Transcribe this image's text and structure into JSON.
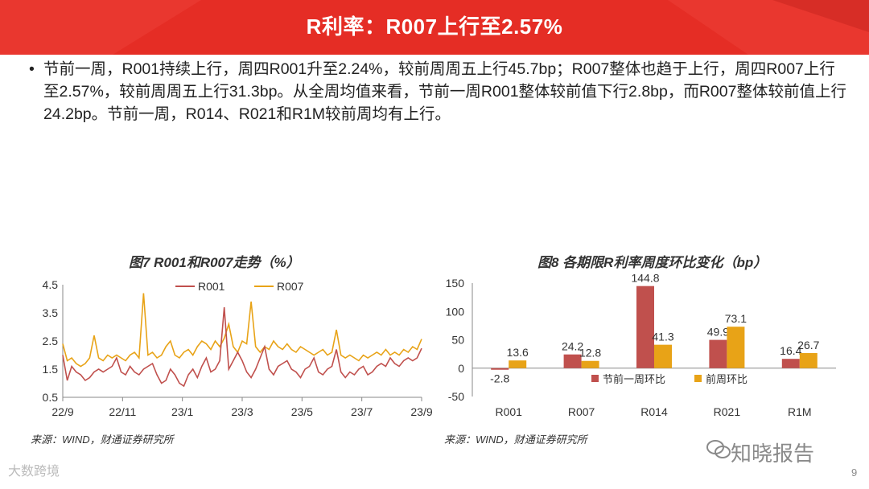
{
  "header": {
    "title": "R利率：R007上行至2.57%"
  },
  "bullet": {
    "text": "节前一周，R001持续上行，周四R001升至2.24%，较前周周五上行45.7bp；R007整体也趋于上行，周四R007上行至2.57%，较前周周五上行31.3bp。从全周均值来看，节前一周R001整体较前值下行2.8bp，而R007整体较前值上行24.2bp。节前一周，R014、R021和R1M较前周均有上行。"
  },
  "chart7": {
    "title": "图7 R001和R007走势（%）",
    "source": "来源：WIND，财通证券研究所"
  },
  "chart8": {
    "title": "图8 各期限R利率周度环比变化（bp）",
    "source": "来源：WIND，财通证券研究所"
  },
  "watermark": {
    "text": "知晓报告",
    "icon": "wechat-icon"
  },
  "footer": {
    "logo": "大数跨境",
    "page": "9"
  },
  "colors": {
    "banner": "#e52d25",
    "r001": "#c0504d",
    "r007": "#e8a317",
    "bar_prev_week": "#c0504d",
    "bar_week_before": "#e8a317"
  },
  "chart_data": [
    {
      "type": "line",
      "title": "图7 R001和R007走势（%）",
      "x_ticks": [
        "22/9",
        "22/11",
        "23/1",
        "23/3",
        "23/5",
        "23/7",
        "23/9"
      ],
      "ylim": [
        0.5,
        4.5
      ],
      "y_ticks": [
        0.5,
        1.5,
        2.5,
        3.5,
        4.5
      ],
      "legend": "top",
      "series": [
        {
          "name": "R001",
          "color": "#c0504d",
          "anchors": [
            [
              0,
              2.0
            ],
            [
              1,
              1.1
            ],
            [
              2,
              1.6
            ],
            [
              3,
              1.4
            ],
            [
              4,
              1.3
            ],
            [
              5,
              1.1
            ],
            [
              6,
              1.2
            ],
            [
              7,
              1.4
            ],
            [
              8,
              1.5
            ],
            [
              9,
              1.4
            ],
            [
              10,
              1.5
            ],
            [
              11,
              1.6
            ],
            [
              12,
              1.9
            ],
            [
              13,
              1.4
            ],
            [
              14,
              1.3
            ],
            [
              15,
              1.6
            ],
            [
              16,
              1.4
            ],
            [
              17,
              1.3
            ],
            [
              18,
              1.5
            ],
            [
              19,
              1.6
            ],
            [
              20,
              1.7
            ],
            [
              21,
              1.3
            ],
            [
              22,
              1.0
            ],
            [
              23,
              1.1
            ],
            [
              24,
              1.5
            ],
            [
              25,
              1.3
            ],
            [
              26,
              1.0
            ],
            [
              27,
              0.9
            ],
            [
              28,
              1.3
            ],
            [
              29,
              1.5
            ],
            [
              30,
              1.2
            ],
            [
              31,
              1.6
            ],
            [
              32,
              1.9
            ],
            [
              33,
              1.4
            ],
            [
              34,
              1.5
            ],
            [
              35,
              1.8
            ],
            [
              36,
              3.7
            ],
            [
              37,
              1.5
            ],
            [
              38,
              1.8
            ],
            [
              39,
              2.1
            ],
            [
              40,
              1.8
            ],
            [
              41,
              1.4
            ],
            [
              42,
              1.2
            ],
            [
              43,
              1.5
            ],
            [
              44,
              1.9
            ],
            [
              45,
              2.3
            ],
            [
              46,
              1.5
            ],
            [
              47,
              1.3
            ],
            [
              48,
              1.6
            ],
            [
              49,
              1.7
            ],
            [
              50,
              1.8
            ],
            [
              51,
              1.5
            ],
            [
              52,
              1.4
            ],
            [
              53,
              1.2
            ],
            [
              54,
              1.5
            ],
            [
              55,
              1.6
            ],
            [
              56,
              1.9
            ],
            [
              57,
              1.4
            ],
            [
              58,
              1.3
            ],
            [
              59,
              1.5
            ],
            [
              60,
              1.6
            ],
            [
              61,
              2.2
            ],
            [
              62,
              1.4
            ],
            [
              63,
              1.2
            ],
            [
              64,
              1.4
            ],
            [
              65,
              1.3
            ],
            [
              66,
              1.5
            ],
            [
              67,
              1.6
            ],
            [
              68,
              1.3
            ],
            [
              69,
              1.4
            ],
            [
              70,
              1.6
            ],
            [
              71,
              1.7
            ],
            [
              72,
              1.6
            ],
            [
              73,
              1.9
            ],
            [
              74,
              1.7
            ],
            [
              75,
              1.6
            ],
            [
              76,
              1.8
            ],
            [
              77,
              1.9
            ],
            [
              78,
              1.8
            ],
            [
              79,
              1.9
            ],
            [
              80,
              2.24
            ]
          ]
        },
        {
          "name": "R007",
          "color": "#e8a317",
          "anchors": [
            [
              0,
              2.4
            ],
            [
              1,
              1.8
            ],
            [
              2,
              1.9
            ],
            [
              3,
              1.7
            ],
            [
              4,
              1.6
            ],
            [
              5,
              1.7
            ],
            [
              6,
              1.9
            ],
            [
              7,
              2.7
            ],
            [
              8,
              1.9
            ],
            [
              9,
              1.8
            ],
            [
              10,
              2.0
            ],
            [
              11,
              1.9
            ],
            [
              12,
              2.0
            ],
            [
              13,
              1.9
            ],
            [
              14,
              1.8
            ],
            [
              15,
              2.0
            ],
            [
              16,
              2.1
            ],
            [
              17,
              1.9
            ],
            [
              18,
              4.2
            ],
            [
              19,
              2.0
            ],
            [
              20,
              2.1
            ],
            [
              21,
              1.9
            ],
            [
              22,
              2.0
            ],
            [
              23,
              2.3
            ],
            [
              24,
              2.5
            ],
            [
              25,
              2.0
            ],
            [
              26,
              1.9
            ],
            [
              27,
              2.1
            ],
            [
              28,
              2.2
            ],
            [
              29,
              2.0
            ],
            [
              30,
              2.3
            ],
            [
              31,
              2.5
            ],
            [
              32,
              2.4
            ],
            [
              33,
              2.2
            ],
            [
              34,
              2.5
            ],
            [
              35,
              2.3
            ],
            [
              36,
              2.6
            ],
            [
              37,
              3.1
            ],
            [
              38,
              2.3
            ],
            [
              39,
              2.1
            ],
            [
              40,
              2.5
            ],
            [
              41,
              2.4
            ],
            [
              42,
              3.9
            ],
            [
              43,
              2.3
            ],
            [
              44,
              2.1
            ],
            [
              45,
              2.3
            ],
            [
              46,
              2.2
            ],
            [
              47,
              2.5
            ],
            [
              48,
              2.3
            ],
            [
              49,
              2.2
            ],
            [
              50,
              2.4
            ],
            [
              51,
              2.2
            ],
            [
              52,
              2.1
            ],
            [
              53,
              2.3
            ],
            [
              54,
              2.2
            ],
            [
              55,
              2.1
            ],
            [
              56,
              2.0
            ],
            [
              57,
              2.1
            ],
            [
              58,
              2.2
            ],
            [
              59,
              2.0
            ],
            [
              60,
              2.1
            ],
            [
              61,
              2.9
            ],
            [
              62,
              2.0
            ],
            [
              63,
              1.9
            ],
            [
              64,
              2.0
            ],
            [
              65,
              1.9
            ],
            [
              66,
              1.8
            ],
            [
              67,
              2.0
            ],
            [
              68,
              1.9
            ],
            [
              69,
              2.0
            ],
            [
              70,
              2.1
            ],
            [
              71,
              2.0
            ],
            [
              72,
              2.2
            ],
            [
              73,
              2.0
            ],
            [
              74,
              2.1
            ],
            [
              75,
              2.0
            ],
            [
              76,
              2.2
            ],
            [
              77,
              2.1
            ],
            [
              78,
              2.3
            ],
            [
              79,
              2.2
            ],
            [
              80,
              2.57
            ]
          ]
        }
      ]
    },
    {
      "type": "bar",
      "title": "图8 各期限R利率周度环比变化（bp）",
      "categories": [
        "R001",
        "R007",
        "R014",
        "R021",
        "R1M"
      ],
      "ylim": [
        -50,
        150
      ],
      "y_ticks": [
        -50,
        0,
        50,
        100,
        150
      ],
      "legend": "inside-bottom",
      "series": [
        {
          "name": "节前一周环比",
          "color": "#c0504d",
          "values": [
            -2.8,
            24.2,
            144.8,
            49.9,
            16.4
          ]
        },
        {
          "name": "前周环比",
          "color": "#e8a317",
          "values": [
            13.6,
            12.8,
            41.3,
            73.1,
            26.7
          ]
        }
      ]
    }
  ]
}
